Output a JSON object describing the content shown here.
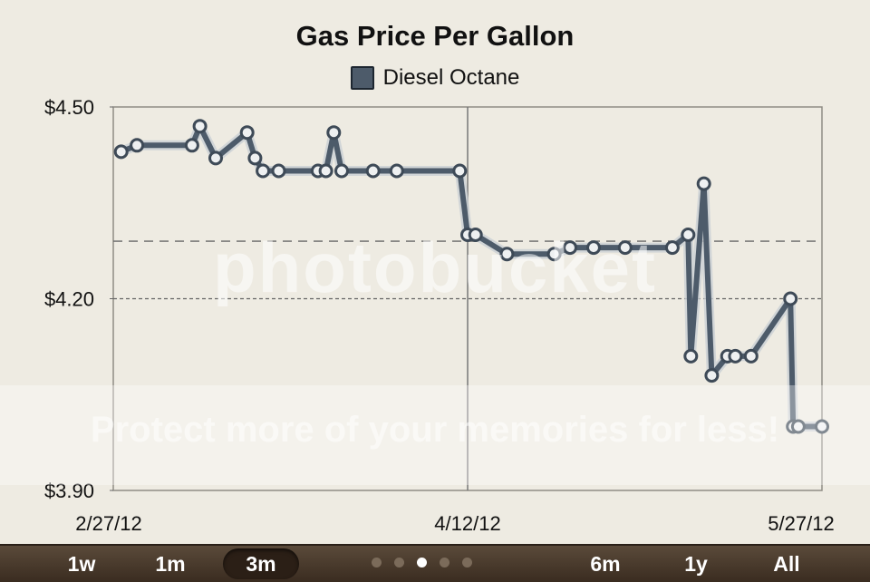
{
  "chart_data": {
    "type": "line",
    "title": "Gas Price Per Gallon",
    "legend": {
      "label": "Diesel Octane",
      "color": "#4d5b6a",
      "placement": "top-center"
    },
    "x_ticks": [
      "2/27/12",
      "4/12/12",
      "5/27/12"
    ],
    "y_ticks": [
      "$4.50",
      "$4.20",
      "$3.90"
    ],
    "ylim": [
      3.9,
      4.5
    ],
    "grid": {
      "dashed_y": [
        4.29,
        4.2
      ]
    },
    "series": [
      {
        "name": "Diesel Octane",
        "x": [
          "2012-02-28",
          "2012-03-01",
          "2012-03-08",
          "2012-03-09",
          "2012-03-11",
          "2012-03-15",
          "2012-03-16",
          "2012-03-17",
          "2012-03-19",
          "2012-03-24",
          "2012-03-25",
          "2012-03-26",
          "2012-03-27",
          "2012-03-31",
          "2012-04-03",
          "2012-04-11",
          "2012-04-12",
          "2012-04-13",
          "2012-04-17",
          "2012-04-23",
          "2012-04-25",
          "2012-04-28",
          "2012-05-02",
          "2012-05-08",
          "2012-05-10",
          "2012-05-10",
          "2012-05-12",
          "2012-05-13",
          "2012-05-15",
          "2012-05-16",
          "2012-05-18",
          "2012-05-23",
          "2012-05-23",
          "2012-05-24",
          "2012-05-27"
        ],
        "y": [
          4.43,
          4.44,
          4.44,
          4.47,
          4.42,
          4.46,
          4.42,
          4.4,
          4.4,
          4.4,
          4.4,
          4.46,
          4.4,
          4.4,
          4.4,
          4.4,
          4.3,
          4.3,
          4.27,
          4.27,
          4.28,
          4.28,
          4.28,
          4.28,
          4.3,
          4.11,
          4.38,
          4.08,
          4.11,
          4.11,
          4.11,
          4.2,
          4.0,
          4.0,
          4.0
        ]
      }
    ]
  },
  "watermark": {
    "brand": "photobucket",
    "tagline": "Protect more of your memories for less!"
  },
  "range_selector": {
    "buttons": [
      "1w",
      "1m",
      "3m",
      "6m",
      "1y",
      "All"
    ],
    "selected": "3m",
    "page_dots": 5,
    "active_dot": 3
  }
}
